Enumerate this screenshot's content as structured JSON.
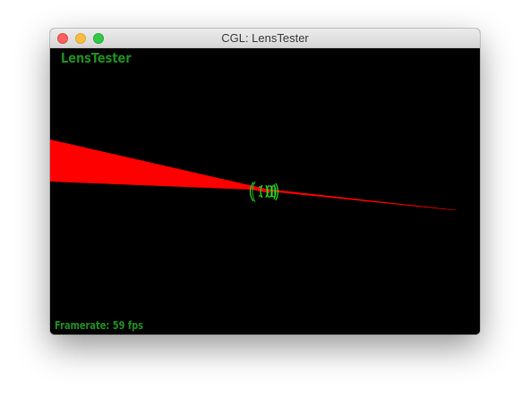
{
  "window": {
    "title": "CGL: LensTester"
  },
  "viewport": {
    "app_label": "LensTester",
    "framerate_text": "Framerate: 59 fps",
    "background_color": "#000000",
    "beam_color": "#ff0000",
    "lens_color": "#22dd22",
    "text_color": "#1e8f1e"
  },
  "icons": {
    "close": "close-button-icon",
    "minimize": "minimize-button-icon",
    "zoom": "zoom-button-icon",
    "lens": "lens-system-icon"
  }
}
